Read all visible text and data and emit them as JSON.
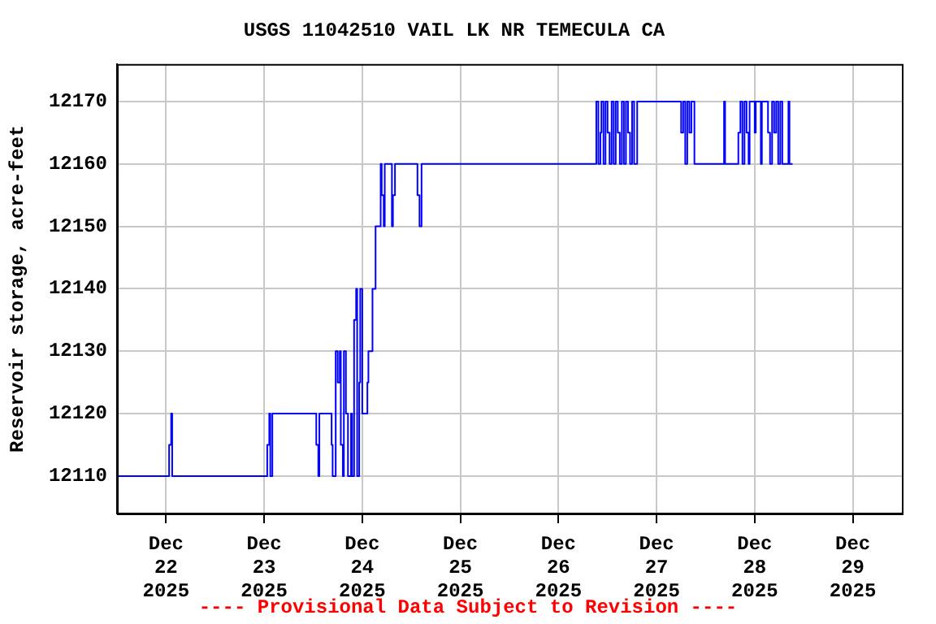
{
  "chart_data": {
    "type": "step",
    "title": "USGS 11042510 VAIL LK NR TEMECULA CA",
    "ylabel": "Reservoir storage, acre-feet",
    "annotations": [
      "---- Provisional Data Subject to Revision ----"
    ],
    "xlim": [
      "2025-12-21T12:00",
      "2025-12-29T12:00"
    ],
    "xticks": [
      {
        "value": "2025-12-22",
        "label": "Dec\n22\n2025"
      },
      {
        "value": "2025-12-23",
        "label": "Dec\n23\n2025"
      },
      {
        "value": "2025-12-24",
        "label": "Dec\n24\n2025"
      },
      {
        "value": "2025-12-25",
        "label": "Dec\n25\n2025"
      },
      {
        "value": "2025-12-26",
        "label": "Dec\n26\n2025"
      },
      {
        "value": "2025-12-27",
        "label": "Dec\n27\n2025"
      },
      {
        "value": "2025-12-28",
        "label": "Dec\n28\n2025"
      },
      {
        "value": "2025-12-29",
        "label": "Dec\n29\n2025"
      }
    ],
    "ylim": [
      12104,
      12176
    ],
    "yticks": [
      12110,
      12120,
      12130,
      12140,
      12150,
      12160,
      12170
    ],
    "grid": true,
    "legend": false,
    "marker": "none",
    "line_style": "solid",
    "series": [
      {
        "color": "#0000ff",
        "x": [
          "2025-12-21T12:00",
          "2025-12-22T00:45",
          "2025-12-22T01:15",
          "2025-12-22T01:30",
          "2025-12-23T00:45",
          "2025-12-23T01:15",
          "2025-12-23T01:30",
          "2025-12-23T02:00",
          "2025-12-23T12:45",
          "2025-12-23T13:15",
          "2025-12-23T13:30",
          "2025-12-23T16:30",
          "2025-12-23T16:45",
          "2025-12-23T17:30",
          "2025-12-23T18:00",
          "2025-12-23T18:30",
          "2025-12-23T18:45",
          "2025-12-23T19:15",
          "2025-12-23T19:30",
          "2025-12-23T20:00",
          "2025-12-23T20:30",
          "2025-12-23T21:15",
          "2025-12-23T21:30",
          "2025-12-23T22:00",
          "2025-12-23T22:30",
          "2025-12-23T22:45",
          "2025-12-23T23:15",
          "2025-12-23T23:30",
          "2025-12-24T00:00",
          "2025-12-24T01:15",
          "2025-12-24T01:30",
          "2025-12-24T02:30",
          "2025-12-24T03:15",
          "2025-12-24T04:30",
          "2025-12-24T04:45",
          "2025-12-24T05:15",
          "2025-12-24T05:30",
          "2025-12-24T07:15",
          "2025-12-24T07:30",
          "2025-12-24T08:00",
          "2025-12-24T13:30",
          "2025-12-24T14:00",
          "2025-12-24T14:30",
          "2025-12-26T09:15",
          "2025-12-26T09:45",
          "2025-12-26T10:15",
          "2025-12-26T10:30",
          "2025-12-26T11:00",
          "2025-12-26T11:30",
          "2025-12-26T12:00",
          "2025-12-26T12:30",
          "2025-12-26T13:00",
          "2025-12-26T13:30",
          "2025-12-26T14:00",
          "2025-12-26T14:30",
          "2025-12-26T15:00",
          "2025-12-26T15:30",
          "2025-12-26T16:00",
          "2025-12-26T16:30",
          "2025-12-26T17:00",
          "2025-12-26T17:30",
          "2025-12-26T18:00",
          "2025-12-26T18:30",
          "2025-12-26T19:15",
          "2025-12-27T06:00",
          "2025-12-27T06:30",
          "2025-12-27T07:00",
          "2025-12-27T07:30",
          "2025-12-27T08:00",
          "2025-12-27T08:30",
          "2025-12-27T09:15",
          "2025-12-27T16:30",
          "2025-12-27T16:45",
          "2025-12-27T20:00",
          "2025-12-27T20:30",
          "2025-12-27T21:00",
          "2025-12-27T21:30",
          "2025-12-27T22:00",
          "2025-12-27T22:30",
          "2025-12-27T22:45",
          "2025-12-28T00:00",
          "2025-12-28T00:15",
          "2025-12-28T01:30",
          "2025-12-28T01:45",
          "2025-12-28T03:15",
          "2025-12-28T03:45",
          "2025-12-28T04:15",
          "2025-12-28T04:45",
          "2025-12-28T05:15",
          "2025-12-28T05:45",
          "2025-12-28T06:15",
          "2025-12-28T06:45",
          "2025-12-28T08:15",
          "2025-12-28T08:30",
          "2025-12-28T09:15"
        ],
        "values": [
          12110,
          12115,
          12120,
          12110,
          12115,
          12120,
          12110,
          12120,
          12115,
          12110,
          12120,
          12115,
          12110,
          12130,
          12125,
          12130,
          12115,
          12110,
          12130,
          12120,
          12110,
          12120,
          12110,
          12135,
          12140,
          12110,
          12125,
          12140,
          12120,
          12125,
          12130,
          12140,
          12150,
          12160,
          12155,
          12150,
          12160,
          12150,
          12155,
          12160,
          12155,
          12150,
          12160,
          12170,
          12160,
          12165,
          12170,
          12160,
          12170,
          12165,
          12160,
          12170,
          12160,
          12170,
          12165,
          12160,
          12170,
          12160,
          12170,
          12165,
          12160,
          12170,
          12160,
          12170,
          12165,
          12170,
          12160,
          12170,
          12165,
          12170,
          12160,
          12170,
          12160,
          12165,
          12170,
          12160,
          12170,
          12165,
          12160,
          12170,
          12165,
          12170,
          12160,
          12170,
          12165,
          12160,
          12170,
          12165,
          12170,
          12160,
          12170,
          12160,
          12170,
          12160,
          12160
        ]
      }
    ]
  }
}
